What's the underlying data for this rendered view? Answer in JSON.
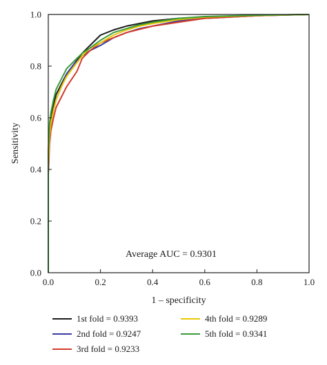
{
  "chart_data": {
    "type": "line",
    "xlabel": "1 – specificity",
    "ylabel": "Sensitivity",
    "xlim": [
      0,
      1
    ],
    "ylim": [
      0,
      1
    ],
    "xticks": [
      "0.0",
      "0.2",
      "0.4",
      "0.6",
      "0.8",
      "1.0"
    ],
    "yticks": [
      "0.0",
      "0.2",
      "0.4",
      "0.6",
      "0.8",
      "1.0"
    ],
    "grid": false,
    "legend_position": "bottom",
    "annotation": "Average AUC = 0.9301",
    "series": [
      {
        "name": "1st fold = 0.9393",
        "color": "#1a1a1a",
        "x": [
          0,
          0,
          0.005,
          0.01,
          0.02,
          0.03,
          0.05,
          0.07,
          0.1,
          0.13,
          0.16,
          0.2,
          0.25,
          0.3,
          0.35,
          0.4,
          0.5,
          0.6,
          0.8,
          1.0
        ],
        "y": [
          0,
          0.45,
          0.56,
          0.6,
          0.65,
          0.69,
          0.73,
          0.77,
          0.81,
          0.85,
          0.88,
          0.92,
          0.94,
          0.955,
          0.965,
          0.975,
          0.985,
          0.99,
          0.997,
          1.0
        ]
      },
      {
        "name": "2nd fold = 0.9247",
        "color": "#3a3aa0",
        "x": [
          0,
          0,
          0.005,
          0.01,
          0.02,
          0.03,
          0.05,
          0.07,
          0.1,
          0.13,
          0.16,
          0.2,
          0.25,
          0.3,
          0.35,
          0.4,
          0.5,
          0.6,
          0.8,
          1.0
        ],
        "y": [
          0,
          0.4,
          0.52,
          0.58,
          0.63,
          0.67,
          0.72,
          0.77,
          0.81,
          0.84,
          0.86,
          0.88,
          0.91,
          0.93,
          0.945,
          0.955,
          0.975,
          0.985,
          0.995,
          1.0
        ]
      },
      {
        "name": "3rd fold = 0.9233",
        "color": "#d43a2a",
        "x": [
          0,
          0,
          0.005,
          0.01,
          0.02,
          0.03,
          0.05,
          0.07,
          0.09,
          0.11,
          0.13,
          0.16,
          0.2,
          0.25,
          0.3,
          0.4,
          0.5,
          0.6,
          0.8,
          1.0
        ],
        "y": [
          0,
          0.38,
          0.5,
          0.55,
          0.6,
          0.64,
          0.68,
          0.72,
          0.75,
          0.78,
          0.83,
          0.86,
          0.89,
          0.91,
          0.93,
          0.955,
          0.97,
          0.985,
          0.995,
          1.0
        ]
      },
      {
        "name": "4th fold = 0.9289",
        "color": "#e8c600",
        "x": [
          0,
          0,
          0.005,
          0.01,
          0.02,
          0.03,
          0.05,
          0.07,
          0.1,
          0.13,
          0.16,
          0.2,
          0.25,
          0.3,
          0.35,
          0.4,
          0.5,
          0.6,
          0.8,
          1.0
        ],
        "y": [
          0,
          0.42,
          0.53,
          0.58,
          0.63,
          0.67,
          0.72,
          0.76,
          0.8,
          0.84,
          0.87,
          0.89,
          0.92,
          0.94,
          0.955,
          0.965,
          0.98,
          0.99,
          0.996,
          1.0
        ]
      },
      {
        "name": "5th fold = 0.9341",
        "color": "#3a9a3a",
        "x": [
          0,
          0,
          0.005,
          0.01,
          0.02,
          0.03,
          0.05,
          0.07,
          0.1,
          0.13,
          0.16,
          0.2,
          0.25,
          0.3,
          0.35,
          0.4,
          0.5,
          0.6,
          0.8,
          1.0
        ],
        "y": [
          0,
          0.47,
          0.58,
          0.62,
          0.67,
          0.71,
          0.75,
          0.79,
          0.82,
          0.85,
          0.87,
          0.9,
          0.93,
          0.945,
          0.96,
          0.97,
          0.985,
          0.992,
          0.997,
          1.0
        ]
      }
    ]
  }
}
